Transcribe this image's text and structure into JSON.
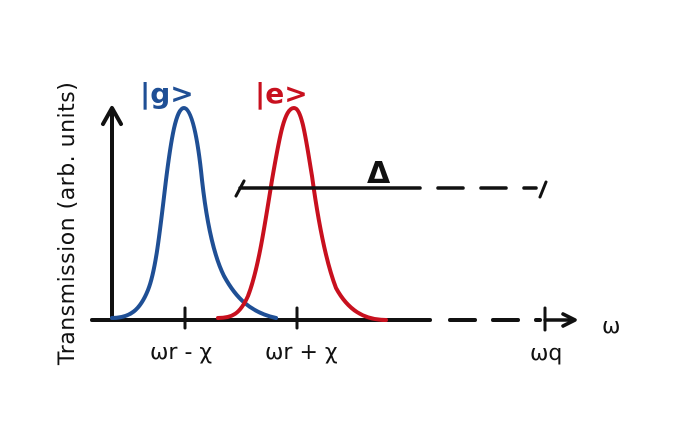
{
  "diagram": {
    "y_axis_label": "Transmission (arb. units)",
    "x_axis_label": "ω",
    "states": [
      {
        "label": "|g>",
        "color": "#1f4f95"
      },
      {
        "label": "|e>",
        "color": "#c8101e"
      }
    ],
    "peaks": [
      {
        "label": "ωr - χ"
      },
      {
        "label": "ωr + χ"
      }
    ],
    "detuning_label": "Δ",
    "qubit_frequency_label": "ωq"
  },
  "colors": {
    "ink": "#111111",
    "ground_state_curve": "#1f4f95",
    "excited_state_curve": "#c8101e"
  }
}
